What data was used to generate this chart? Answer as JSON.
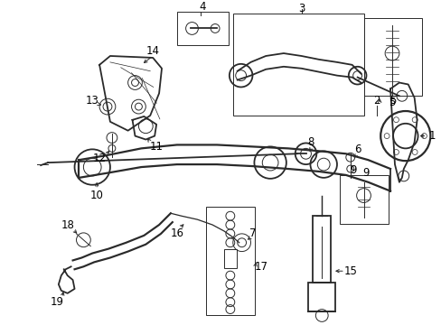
{
  "bg_color": "#ffffff",
  "line_color": "#2a2a2a",
  "fig_width": 4.89,
  "fig_height": 3.6,
  "dpi": 100,
  "label_fontsize": 8.5,
  "lw_main": 1.3,
  "lw_thin": 0.7,
  "lw_thick": 2.0
}
